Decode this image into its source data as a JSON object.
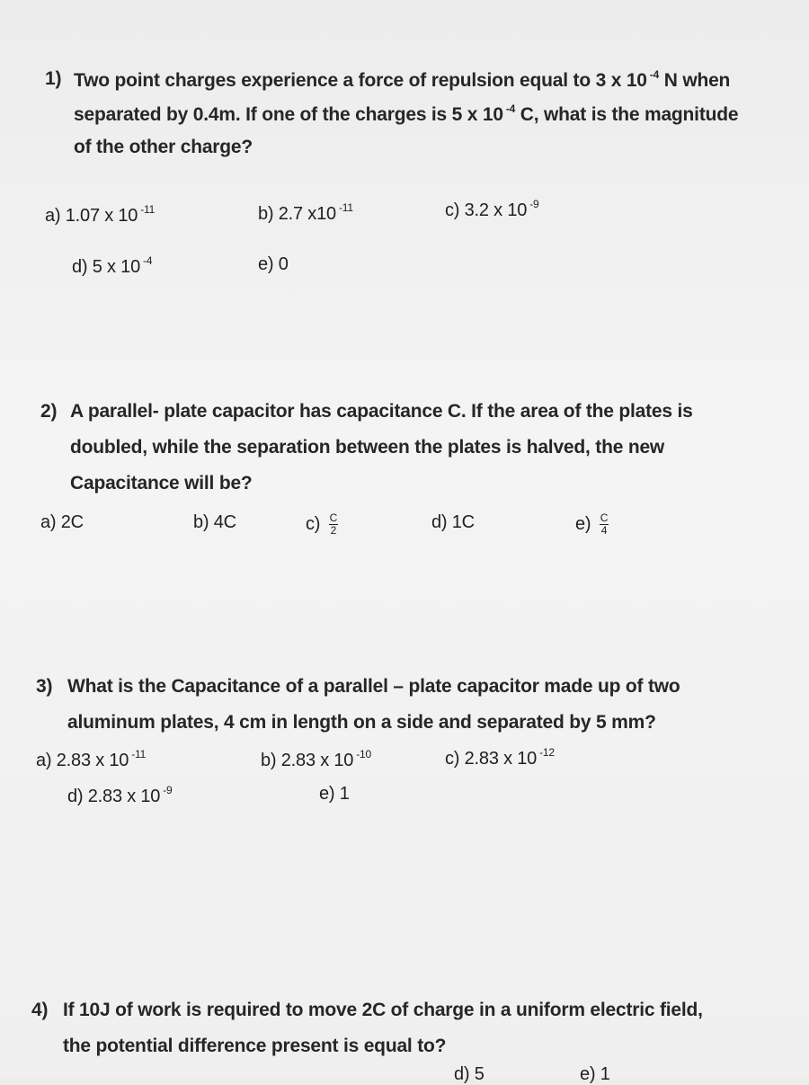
{
  "questions": [
    {
      "number": "1)",
      "lines": [
        [
          {
            "text": "Two point charges experience a force of repulsion equal to 3 x 10"
          },
          {
            "sup": "-4"
          },
          {
            "text": " N when"
          }
        ],
        [
          {
            "text": "separated by 0.4m. If one of the charges is 5 x 10"
          },
          {
            "sup": "-4"
          },
          {
            "text": " C, what is the magnitude"
          }
        ],
        [
          {
            "text": "of the other charge?"
          }
        ]
      ],
      "options": [
        {
          "label": "a)",
          "text": "1.07 x 10",
          "sup": "-11"
        },
        {
          "label": "b)",
          "text": "2.7 x10",
          "sup": "-11"
        },
        {
          "label": "c)",
          "text": "3.2 x 10",
          "sup": "-9"
        },
        {
          "label": "d)",
          "text": "5 x 10",
          "sup": "-4"
        },
        {
          "label": "e)",
          "text": "0"
        }
      ]
    },
    {
      "number": "2)",
      "lines": [
        [
          {
            "text": "A parallel- plate capacitor has capacitance C. If the area of the plates is"
          }
        ],
        [
          {
            "text": "doubled, while the separation between the plates is halved, the new"
          }
        ],
        [
          {
            "text": "Capacitance will be?"
          }
        ]
      ],
      "options": [
        {
          "label": "a)",
          "text": "2C"
        },
        {
          "label": "b)",
          "text": "4C"
        },
        {
          "label": "c)",
          "num": "C",
          "den": "2"
        },
        {
          "label": "d)",
          "text": "1C"
        },
        {
          "label": "e)",
          "num": "C",
          "den": "4"
        }
      ]
    },
    {
      "number": "3)",
      "lines": [
        [
          {
            "text": "What is the Capacitance of a parallel – plate capacitor made up of two"
          }
        ],
        [
          {
            "text": "aluminum plates, 4 cm in length on a side and separated by 5 mm?"
          }
        ]
      ],
      "options": [
        {
          "label": "a)",
          "text": "2.83 x 10",
          "sup": "-11"
        },
        {
          "label": "b)",
          "text": "2.83 x 10",
          "sup": "-10"
        },
        {
          "label": "c)",
          "text": "2.83 x 10",
          "sup": "-12"
        },
        {
          "label": "d)",
          "text": "2.83 x 10",
          "sup": "-9"
        },
        {
          "label": "e)",
          "text": "1"
        }
      ]
    },
    {
      "number": "4)",
      "lines": [
        [
          {
            "text": "If 10J of work is required to move  2C of charge in a uniform electric field,"
          }
        ],
        [
          {
            "text": "the potential difference present is equal to?"
          }
        ]
      ],
      "options": [
        {
          "label": "d)",
          "text": "5"
        },
        {
          "label": "e)",
          "text": "1"
        }
      ]
    }
  ]
}
